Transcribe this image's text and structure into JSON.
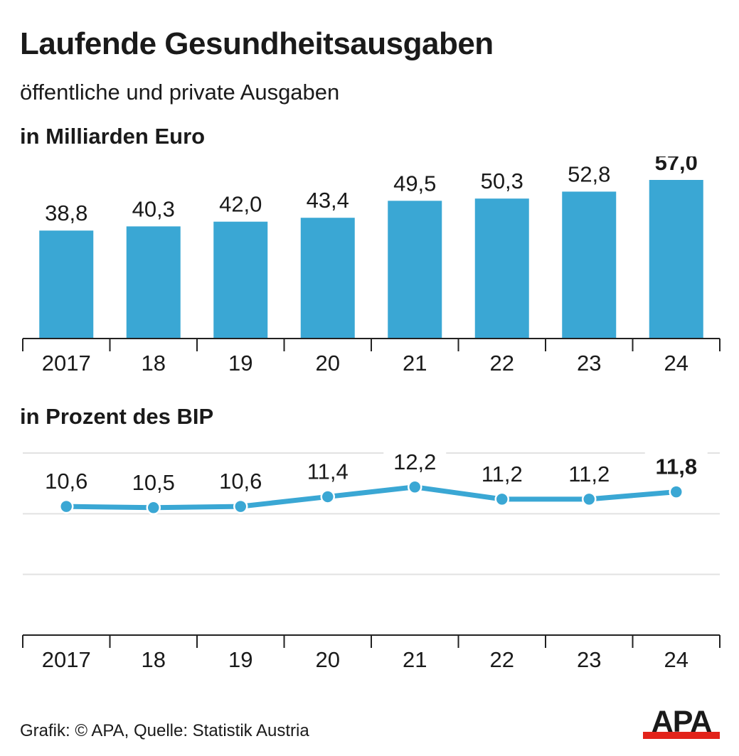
{
  "title": "Laufende Gesundheitsausgaben",
  "subtitle": "öffentliche und private Ausgaben",
  "source": "Grafik: © APA, Quelle: Statistik Austria",
  "logo_text": "APA",
  "colors": {
    "bar": "#3aa7d4",
    "line": "#3aa7d4",
    "text": "#1a1a1a",
    "grid": "#e2e2e2",
    "axis": "#222222",
    "logo_red": "#e2231a"
  },
  "chart_data": [
    {
      "type": "bar",
      "label": "in Milliarden Euro",
      "categories": [
        "2017",
        "18",
        "19",
        "20",
        "21",
        "22",
        "23",
        "24"
      ],
      "values": [
        38.8,
        40.3,
        42.0,
        43.4,
        49.5,
        50.3,
        52.8,
        57.0
      ],
      "value_labels": [
        "38,8",
        "40,3",
        "42,0",
        "43,4",
        "49,5",
        "50,3",
        "52,8",
        "57,0"
      ],
      "highlight_index": 7,
      "ylim": [
        0,
        57.0
      ],
      "grid": false
    },
    {
      "type": "line",
      "label": "in Prozent des BIP",
      "categories": [
        "2017",
        "18",
        "19",
        "20",
        "21",
        "22",
        "23",
        "24"
      ],
      "values": [
        10.6,
        10.5,
        10.6,
        11.4,
        12.2,
        11.2,
        11.2,
        11.8
      ],
      "value_labels": [
        "10,6",
        "10,5",
        "10,6",
        "11,4",
        "12,2",
        "11,2",
        "11,2",
        "11,8"
      ],
      "highlight_index": 7,
      "ylim": [
        0,
        15
      ],
      "grid": true
    }
  ]
}
